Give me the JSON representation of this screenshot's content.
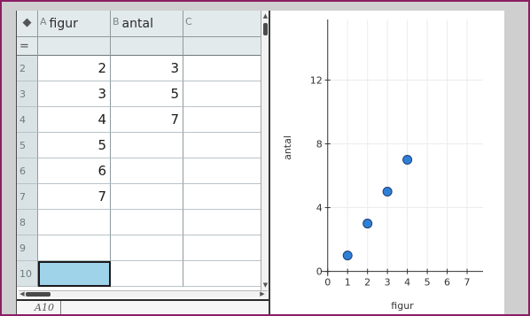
{
  "spreadsheet": {
    "corner_icon": "diamond-icon",
    "columns": [
      {
        "letter": "A",
        "name": "figur"
      },
      {
        "letter": "B",
        "name": "antal"
      },
      {
        "letter": "C",
        "name": ""
      }
    ],
    "formula_row_label": "=",
    "rows": [
      {
        "num": "2",
        "a": "2",
        "b": "3",
        "c": ""
      },
      {
        "num": "3",
        "a": "3",
        "b": "5",
        "c": ""
      },
      {
        "num": "4",
        "a": "4",
        "b": "7",
        "c": ""
      },
      {
        "num": "5",
        "a": "5",
        "b": "",
        "c": ""
      },
      {
        "num": "6",
        "a": "6",
        "b": "",
        "c": ""
      },
      {
        "num": "7",
        "a": "7",
        "b": "",
        "c": ""
      },
      {
        "num": "8",
        "a": "",
        "b": "",
        "c": ""
      },
      {
        "num": "9",
        "a": "",
        "b": "",
        "c": ""
      },
      {
        "num": "10",
        "a": "",
        "b": "",
        "c": ""
      }
    ],
    "selected_cell_ref": "A10"
  },
  "chart_data": {
    "type": "scatter",
    "xlabel": "figur",
    "ylabel": "antal",
    "xlim": [
      -0.3,
      7.8
    ],
    "ylim": [
      -0.3,
      15.8
    ],
    "xticks": [
      0,
      1,
      2,
      3,
      4,
      5,
      6,
      7
    ],
    "yticks": [
      0,
      4,
      8,
      12
    ],
    "grid": true,
    "point_color": "#2f7fd6",
    "points": [
      {
        "x": 1,
        "y": 1
      },
      {
        "x": 2,
        "y": 3
      },
      {
        "x": 3,
        "y": 5
      },
      {
        "x": 4,
        "y": 7
      }
    ]
  }
}
